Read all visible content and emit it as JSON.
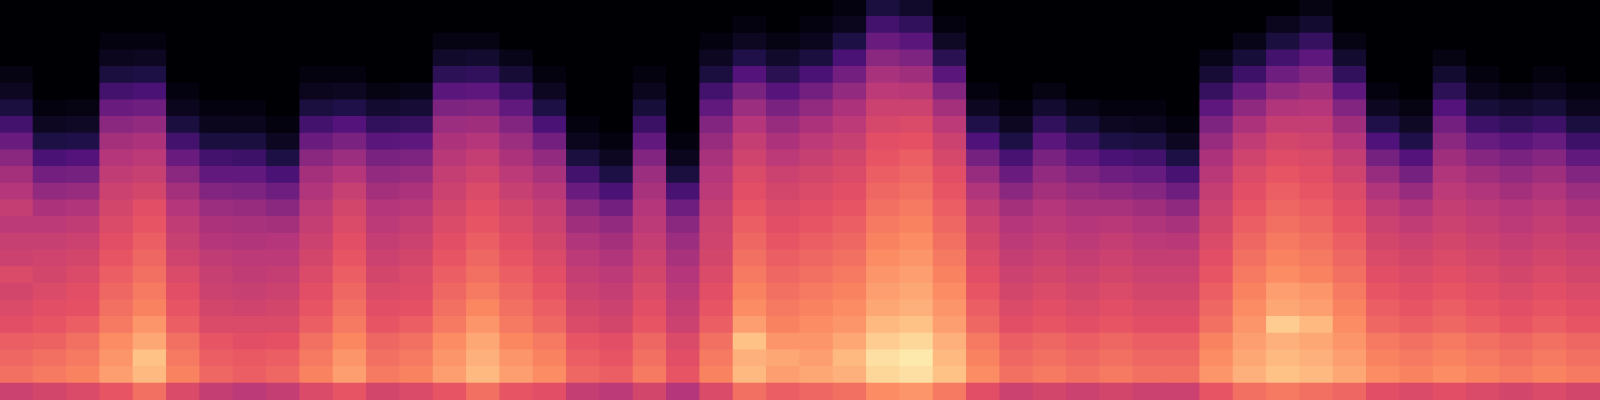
{
  "chart_data": {
    "type": "heatmap",
    "tick_labels": false,
    "zlim": [
      0,
      100
    ],
    "cells": [
      [
        56,
        70,
        68,
        66,
        62,
        60,
        58,
        60,
        56,
        55,
        52,
        54,
        50,
        46,
        40,
        32,
        22,
        12,
        6,
        3,
        0,
        0,
        0,
        0
      ],
      [
        58,
        72,
        70,
        67,
        64,
        62,
        60,
        58,
        57,
        55,
        52,
        48,
        42,
        34,
        24,
        13,
        6,
        2,
        0,
        0,
        0,
        0,
        0,
        0
      ],
      [
        60,
        74,
        72,
        70,
        66,
        63,
        62,
        60,
        58,
        56,
        53,
        49,
        43,
        35,
        26,
        14,
        7,
        3,
        0,
        0,
        0,
        0,
        0,
        0
      ],
      [
        64,
        80,
        78,
        76,
        72,
        70,
        68,
        66,
        64,
        62,
        60,
        58,
        56,
        53,
        50,
        46,
        40,
        32,
        22,
        12,
        5,
        2,
        0,
        0
      ],
      [
        70,
        86,
        88,
        82,
        78,
        74,
        72,
        70,
        68,
        66,
        64,
        62,
        58,
        55,
        52,
        48,
        42,
        33,
        24,
        13,
        6,
        2,
        0,
        0
      ],
      [
        60,
        74,
        72,
        70,
        66,
        64,
        62,
        60,
        57,
        55,
        53,
        50,
        46,
        40,
        32,
        22,
        12,
        5,
        2,
        0,
        0,
        0,
        0,
        0
      ],
      [
        54,
        68,
        66,
        64,
        60,
        58,
        56,
        55,
        53,
        50,
        48,
        44,
        38,
        30,
        22,
        12,
        5,
        2,
        0,
        0,
        0,
        0,
        0,
        0
      ],
      [
        52,
        66,
        65,
        62,
        60,
        57,
        55,
        53,
        52,
        49,
        47,
        43,
        37,
        30,
        21,
        12,
        5,
        2,
        0,
        0,
        0,
        0,
        0,
        0
      ],
      [
        54,
        68,
        66,
        63,
        60,
        58,
        56,
        54,
        52,
        50,
        46,
        40,
        33,
        24,
        13,
        6,
        2,
        0,
        0,
        0,
        0,
        0,
        0,
        0
      ],
      [
        60,
        74,
        72,
        70,
        66,
        64,
        62,
        60,
        58,
        56,
        54,
        52,
        49,
        46,
        40,
        32,
        22,
        12,
        5,
        2,
        0,
        0,
        0,
        0
      ],
      [
        64,
        80,
        78,
        75,
        72,
        70,
        68,
        66,
        64,
        62,
        60,
        58,
        55,
        50,
        44,
        36,
        26,
        14,
        6,
        2,
        0,
        0,
        0,
        0
      ],
      [
        58,
        72,
        70,
        68,
        64,
        62,
        60,
        58,
        56,
        54,
        52,
        50,
        46,
        42,
        36,
        28,
        18,
        9,
        3,
        0,
        0,
        0,
        0,
        0
      ],
      [
        60,
        74,
        72,
        70,
        66,
        63,
        61,
        60,
        58,
        56,
        54,
        51,
        48,
        43,
        37,
        29,
        19,
        10,
        4,
        0,
        0,
        0,
        0,
        0
      ],
      [
        64,
        80,
        78,
        76,
        72,
        70,
        68,
        66,
        64,
        62,
        60,
        58,
        56,
        54,
        51,
        48,
        44,
        37,
        28,
        17,
        8,
        3,
        0,
        0
      ],
      [
        70,
        86,
        84,
        82,
        78,
        75,
        72,
        70,
        68,
        66,
        64,
        62,
        60,
        57,
        54,
        50,
        45,
        38,
        29,
        18,
        9,
        3,
        0,
        0
      ],
      [
        64,
        80,
        78,
        75,
        72,
        70,
        68,
        66,
        64,
        62,
        60,
        58,
        55,
        52,
        48,
        44,
        38,
        30,
        20,
        10,
        4,
        0,
        0,
        0
      ],
      [
        62,
        76,
        74,
        72,
        68,
        66,
        64,
        62,
        60,
        58,
        56,
        54,
        51,
        47,
        42,
        34,
        24,
        13,
        6,
        2,
        0,
        0,
        0,
        0
      ],
      [
        54,
        68,
        66,
        64,
        60,
        58,
        56,
        54,
        52,
        49,
        45,
        40,
        32,
        22,
        12,
        5,
        2,
        0,
        0,
        0,
        0,
        0,
        0,
        0
      ],
      [
        52,
        66,
        64,
        62,
        58,
        56,
        54,
        52,
        49,
        46,
        42,
        34,
        24,
        13,
        6,
        2,
        0,
        0,
        0,
        0,
        0,
        0,
        0,
        0
      ],
      [
        58,
        72,
        70,
        68,
        64,
        62,
        60,
        58,
        56,
        54,
        52,
        50,
        47,
        44,
        38,
        30,
        20,
        11,
        5,
        2,
        0,
        0,
        0,
        0
      ],
      [
        50,
        64,
        62,
        60,
        56,
        54,
        52,
        50,
        47,
        44,
        40,
        33,
        23,
        12,
        5,
        2,
        0,
        0,
        0,
        0,
        0,
        0,
        0,
        0
      ],
      [
        60,
        74,
        72,
        70,
        66,
        64,
        62,
        60,
        58,
        57,
        56,
        54,
        52,
        50,
        47,
        43,
        38,
        30,
        22,
        12,
        6,
        2,
        0,
        0
      ],
      [
        70,
        86,
        84,
        88,
        80,
        76,
        74,
        72,
        70,
        68,
        66,
        64,
        62,
        60,
        57,
        54,
        50,
        44,
        36,
        26,
        14,
        6,
        2,
        0
      ],
      [
        66,
        80,
        82,
        78,
        74,
        72,
        70,
        68,
        66,
        64,
        62,
        60,
        58,
        56,
        52,
        48,
        43,
        36,
        27,
        16,
        8,
        3,
        0,
        0
      ],
      [
        68,
        82,
        80,
        78,
        76,
        74,
        72,
        70,
        68,
        66,
        64,
        62,
        60,
        58,
        55,
        52,
        48,
        42,
        34,
        24,
        12,
        5,
        2,
        0
      ],
      [
        70,
        84,
        86,
        82,
        78,
        76,
        74,
        72,
        70,
        68,
        66,
        64,
        62,
        60,
        58,
        55,
        52,
        48,
        42,
        34,
        24,
        13,
        5,
        2
      ],
      [
        76,
        92,
        94,
        90,
        86,
        82,
        80,
        78,
        76,
        74,
        72,
        70,
        68,
        66,
        64,
        62,
        59,
        56,
        52,
        47,
        40,
        32,
        22,
        12
      ],
      [
        78,
        94,
        96,
        92,
        88,
        84,
        82,
        80,
        78,
        76,
        74,
        72,
        70,
        68,
        66,
        63,
        60,
        56,
        51,
        45,
        37,
        28,
        18,
        8
      ],
      [
        72,
        88,
        86,
        84,
        80,
        78,
        76,
        74,
        72,
        70,
        68,
        66,
        64,
        62,
        59,
        56,
        52,
        46,
        38,
        28,
        16,
        7,
        2,
        0
      ],
      [
        62,
        76,
        74,
        72,
        68,
        66,
        64,
        62,
        60,
        58,
        56,
        53,
        49,
        43,
        35,
        25,
        14,
        6,
        2,
        0,
        0,
        0,
        0,
        0
      ],
      [
        56,
        70,
        68,
        66,
        62,
        60,
        58,
        56,
        54,
        52,
        50,
        46,
        40,
        32,
        23,
        13,
        6,
        2,
        0,
        0,
        0,
        0,
        0,
        0
      ],
      [
        58,
        72,
        70,
        68,
        64,
        62,
        60,
        58,
        56,
        54,
        52,
        50,
        46,
        42,
        36,
        28,
        18,
        9,
        3,
        0,
        0,
        0,
        0,
        0
      ],
      [
        56,
        70,
        68,
        66,
        62,
        60,
        58,
        56,
        54,
        52,
        50,
        47,
        43,
        37,
        29,
        20,
        11,
        4,
        0,
        0,
        0,
        0,
        0,
        0
      ],
      [
        58,
        72,
        70,
        68,
        64,
        62,
        60,
        58,
        56,
        54,
        51,
        47,
        41,
        33,
        24,
        13,
        6,
        2,
        0,
        0,
        0,
        0,
        0,
        0
      ],
      [
        56,
        70,
        68,
        66,
        62,
        60,
        58,
        56,
        54,
        52,
        49,
        45,
        39,
        31,
        22,
        12,
        5,
        2,
        0,
        0,
        0,
        0,
        0,
        0
      ],
      [
        56,
        70,
        68,
        66,
        62,
        60,
        58,
        56,
        54,
        51,
        47,
        41,
        33,
        23,
        13,
        6,
        2,
        0,
        0,
        0,
        0,
        0,
        0,
        0
      ],
      [
        64,
        78,
        76,
        74,
        70,
        68,
        66,
        64,
        62,
        60,
        58,
        56,
        54,
        51,
        48,
        43,
        37,
        29,
        19,
        10,
        4,
        0,
        0,
        0
      ],
      [
        70,
        84,
        82,
        80,
        78,
        76,
        74,
        72,
        70,
        68,
        66,
        64,
        62,
        60,
        57,
        53,
        48,
        41,
        32,
        21,
        11,
        4,
        0,
        0
      ],
      [
        72,
        88,
        86,
        84,
        90,
        82,
        80,
        76,
        74,
        72,
        70,
        68,
        66,
        64,
        61,
        58,
        54,
        49,
        42,
        33,
        22,
        12,
        5,
        0
      ],
      [
        70,
        86,
        84,
        82,
        86,
        80,
        78,
        74,
        72,
        70,
        68,
        66,
        64,
        62,
        60,
        57,
        54,
        50,
        45,
        38,
        29,
        19,
        9,
        3
      ],
      [
        68,
        82,
        80,
        78,
        76,
        74,
        72,
        70,
        68,
        66,
        64,
        62,
        60,
        57,
        54,
        50,
        45,
        38,
        29,
        18,
        9,
        3,
        0,
        0
      ],
      [
        62,
        76,
        74,
        72,
        68,
        66,
        64,
        62,
        60,
        58,
        56,
        53,
        49,
        43,
        35,
        25,
        14,
        6,
        2,
        0,
        0,
        0,
        0,
        0
      ],
      [
        60,
        74,
        72,
        70,
        66,
        64,
        62,
        60,
        58,
        56,
        53,
        49,
        43,
        35,
        26,
        14,
        7,
        3,
        0,
        0,
        0,
        0,
        0,
        0
      ],
      [
        62,
        76,
        74,
        72,
        68,
        66,
        64,
        62,
        60,
        58,
        56,
        54,
        52,
        49,
        45,
        40,
        34,
        26,
        17,
        9,
        3,
        0,
        0,
        0
      ],
      [
        60,
        74,
        72,
        70,
        66,
        64,
        62,
        60,
        58,
        56,
        54,
        52,
        49,
        45,
        39,
        31,
        21,
        11,
        5,
        2,
        0,
        0,
        0,
        0
      ],
      [
        58,
        72,
        70,
        68,
        64,
        62,
        60,
        58,
        56,
        54,
        52,
        50,
        46,
        42,
        36,
        28,
        18,
        9,
        3,
        0,
        0,
        0,
        0,
        0
      ],
      [
        60,
        74,
        72,
        70,
        66,
        64,
        62,
        60,
        58,
        56,
        54,
        52,
        49,
        45,
        39,
        31,
        21,
        11,
        5,
        2,
        0,
        0,
        0,
        0
      ],
      [
        58,
        72,
        70,
        68,
        64,
        62,
        60,
        58,
        56,
        54,
        51,
        48,
        44,
        38,
        30,
        21,
        12,
        5,
        2,
        0,
        0,
        0,
        0,
        0
      ]
    ]
  }
}
